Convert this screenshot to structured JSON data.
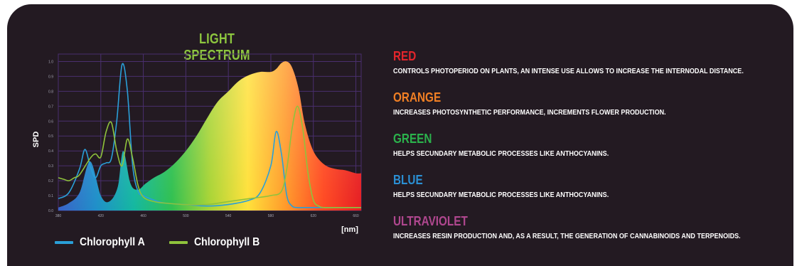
{
  "chart_data": {
    "type": "area",
    "title": "LIGHT SPECTRUM",
    "xlabel": "[nm]",
    "ylabel": "SPD",
    "x_ticks": [
      "380",
      "420",
      "460",
      "500",
      "540",
      "580",
      "620",
      "660"
    ],
    "y_ticks": [
      "0.0",
      "0.1",
      "0.2",
      "0.3",
      "0.4",
      "0.5",
      "0.6",
      "0.7",
      "0.8",
      "0.9",
      "1.0"
    ],
    "xlim": [
      380,
      665
    ],
    "ylim": [
      0,
      1.05
    ],
    "grid": true,
    "gradient_colors": [
      "#3a62c8",
      "#1f8fc9",
      "#14b8a0",
      "#30c050",
      "#a9d435",
      "#ffe13a",
      "#ff9a2a",
      "#ff4a22",
      "#e61e22"
    ],
    "series": [
      {
        "name": "",
        "color": "#ff3a20",
        "x": [
          380,
          390,
          400,
          410,
          420,
          428,
          436,
          441,
          448,
          455,
          462,
          470,
          480,
          490,
          500,
          510,
          520,
          530,
          540,
          550,
          560,
          570,
          580,
          585,
          590,
          595,
          600,
          606,
          612,
          620,
          630,
          640,
          650,
          660,
          665
        ],
        "y": [
          0.02,
          0.05,
          0.12,
          0.33,
          0.1,
          0.06,
          0.16,
          0.4,
          0.18,
          0.14,
          0.18,
          0.22,
          0.26,
          0.32,
          0.4,
          0.5,
          0.62,
          0.73,
          0.8,
          0.87,
          0.91,
          0.93,
          0.93,
          0.95,
          0.99,
          1.0,
          0.96,
          0.82,
          0.58,
          0.4,
          0.31,
          0.28,
          0.27,
          0.25,
          0.25
        ]
      },
      {
        "name": "Chlorophyll A",
        "color": "#2a9fd8",
        "x": [
          380,
          390,
          400,
          405,
          410,
          415,
          420,
          425,
          430,
          435,
          440,
          445,
          450,
          455,
          460,
          470,
          480,
          500,
          520,
          540,
          560,
          570,
          580,
          585,
          590,
          595,
          600,
          605,
          610,
          620,
          640,
          665
        ],
        "y": [
          0.08,
          0.12,
          0.28,
          0.41,
          0.3,
          0.22,
          0.3,
          0.32,
          0.35,
          0.6,
          0.98,
          0.8,
          0.3,
          0.13,
          0.1,
          0.07,
          0.05,
          0.04,
          0.03,
          0.04,
          0.07,
          0.12,
          0.3,
          0.53,
          0.38,
          0.1,
          0.03,
          0.02,
          0.02,
          0.02,
          0.02,
          0.02
        ]
      },
      {
        "name": "Chlorophyll B",
        "color": "#8fc23c",
        "x": [
          380,
          385,
          390,
          395,
          400,
          410,
          415,
          420,
          425,
          430,
          435,
          440,
          445,
          450,
          455,
          460,
          470,
          480,
          500,
          520,
          540,
          560,
          580,
          590,
          595,
          600,
          605,
          610,
          615,
          620,
          625,
          630,
          640,
          665
        ],
        "y": [
          0.22,
          0.21,
          0.2,
          0.22,
          0.24,
          0.35,
          0.38,
          0.36,
          0.53,
          0.59,
          0.4,
          0.3,
          0.48,
          0.35,
          0.17,
          0.09,
          0.06,
          0.05,
          0.04,
          0.04,
          0.06,
          0.08,
          0.1,
          0.13,
          0.28,
          0.55,
          0.7,
          0.55,
          0.25,
          0.07,
          0.03,
          0.02,
          0.02,
          0.02
        ]
      }
    ]
  },
  "legend": [
    {
      "label": "Chlorophyll A",
      "color": "#2a9fd8"
    },
    {
      "label": "Chlorophyll B",
      "color": "#8fc23c"
    }
  ],
  "info": [
    {
      "title": "RED",
      "color": "#e2252c",
      "desc": "CONTROLS PHOTOPERIOD ON PLANTS, AN INTENSE USE ALLOWS TO INCREASE THE INTERNODAL DISTANCE."
    },
    {
      "title": "ORANGE",
      "color": "#f07f24",
      "desc": "INCREASES PHOTOSYNTHETIC PERFORMANCE, INCREMENTS FLOWER PRODUCTION."
    },
    {
      "title": "GREEN",
      "color": "#2bb24c",
      "desc": "HELPS SECUNDARY METABOLIC PROCESSES LIKE ANTHOCYANINS."
    },
    {
      "title": "BLUE",
      "color": "#2b8fd3",
      "desc": "HELPS SECUNDARY METABOLIC PROCESSES LIKE ANTHOCYANINS."
    },
    {
      "title": "ULTRAVIOLET",
      "color": "#b0478f",
      "desc": "INCREASES RESIN PRODUCTION AND, AS A RESULT, THE GENERATION OF CANNABINOIDS AND TERPENOIDS."
    }
  ],
  "colors": {
    "background": "#231a22",
    "title": "#8dc63f",
    "grid": "#4a2f6e"
  }
}
